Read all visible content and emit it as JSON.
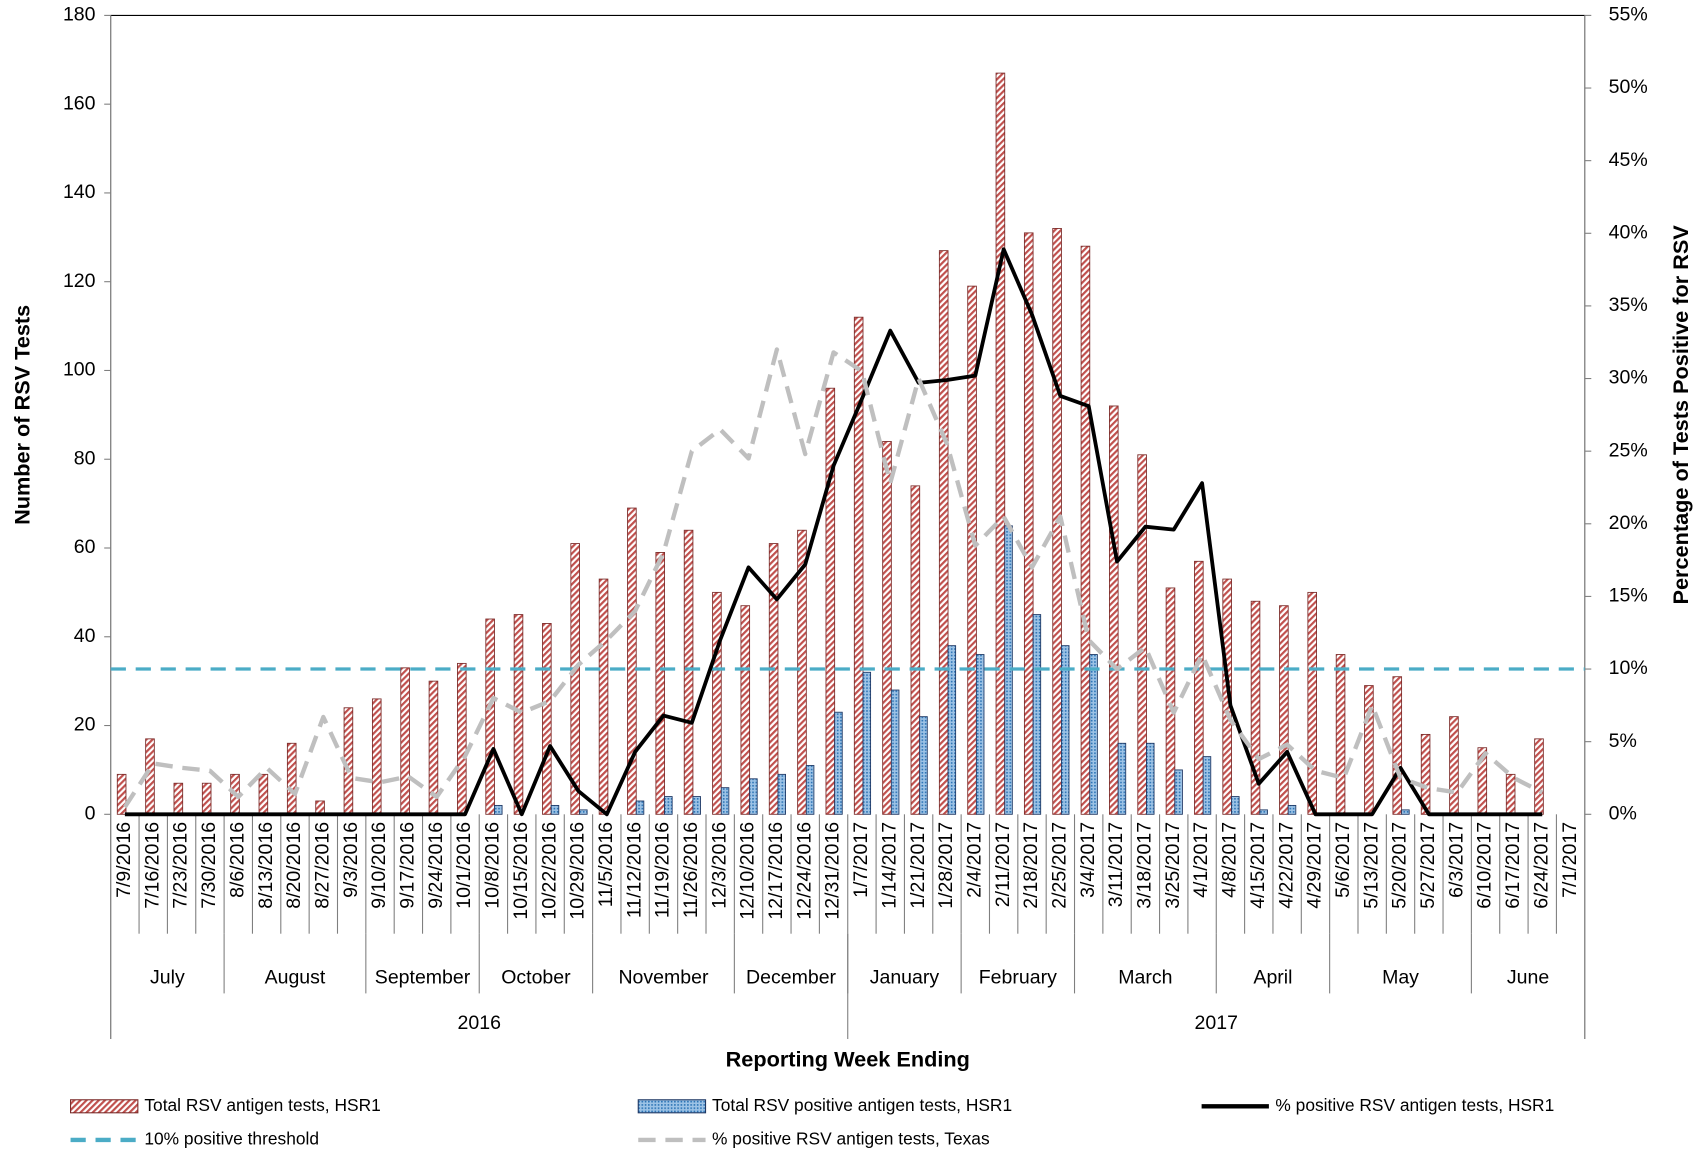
{
  "chart_data": {
    "type": "bar",
    "x_label": "Reporting Week Ending",
    "y_label": "Number of RSV Tests",
    "y2_label": "Percentage of Tests Positive for RSV",
    "categories": [
      "7/9/2016",
      "7/16/2016",
      "7/23/2016",
      "7/30/2016",
      "8/6/2016",
      "8/13/2016",
      "8/20/2016",
      "8/27/2016",
      "9/3/2016",
      "9/10/2016",
      "9/17/2016",
      "9/24/2016",
      "10/1/2016",
      "10/8/2016",
      "10/15/2016",
      "10/22/2016",
      "10/29/2016",
      "11/5/2016",
      "11/12/2016",
      "11/19/2016",
      "11/26/2016",
      "12/3/2016",
      "12/10/2016",
      "12/17/2016",
      "12/24/2016",
      "12/31/2016",
      "1/7/2017",
      "1/14/2017",
      "1/21/2017",
      "1/28/2017",
      "2/4/2017",
      "2/11/2017",
      "2/18/2017",
      "2/25/2017",
      "3/4/2017",
      "3/11/2017",
      "3/18/2017",
      "3/25/2017",
      "4/1/2017",
      "4/8/2017",
      "4/15/2017",
      "4/22/2017",
      "4/29/2017",
      "5/6/2017",
      "5/13/2017",
      "5/20/2017",
      "5/27/2017",
      "6/3/2017",
      "6/10/2017",
      "6/17/2017",
      "6/24/2017",
      "7/1/2017"
    ],
    "months": [
      "July",
      "August",
      "September",
      "October",
      "November",
      "December",
      "January",
      "February",
      "March",
      "April",
      "May",
      "June"
    ],
    "years": [
      "2016",
      "2017"
    ],
    "series": [
      {
        "name": "Total RSV antigen tests, HSR1",
        "color": "#c0504d",
        "type": "bar",
        "values": [
          9,
          17,
          7,
          7,
          9,
          9,
          16,
          3,
          24,
          26,
          33,
          30,
          34,
          44,
          45,
          43,
          61,
          53,
          69,
          59,
          64,
          50,
          47,
          61,
          64,
          96,
          112,
          84,
          74,
          127,
          119,
          167,
          131,
          132,
          128,
          92,
          81,
          51,
          57,
          53,
          48,
          47,
          50,
          36,
          29,
          31,
          18,
          22,
          15,
          9,
          17,
          null
        ]
      },
      {
        "name": "Total RSV positive antigen tests, HSR1",
        "color": "#4f81bd",
        "type": "bar",
        "values": [
          0,
          0,
          0,
          0,
          0,
          0,
          0,
          0,
          0,
          0,
          0,
          0,
          0,
          2,
          0,
          2,
          1,
          0,
          3,
          4,
          4,
          6,
          8,
          9,
          11,
          23,
          32,
          28,
          22,
          38,
          36,
          65,
          45,
          38,
          36,
          16,
          16,
          10,
          13,
          4,
          1,
          2,
          0,
          0,
          0,
          1,
          0,
          0,
          0,
          0,
          0,
          null
        ]
      },
      {
        "name": "% positive RSV antigen tests, HSR1",
        "color": "#000000",
        "type": "line",
        "axis": "y2",
        "values": [
          0,
          0,
          0,
          0,
          0,
          0,
          0,
          0,
          0,
          0,
          0,
          0,
          0,
          4.5,
          0,
          4.7,
          1.6,
          0,
          4.3,
          6.8,
          6.3,
          12,
          17,
          14.8,
          17.2,
          24,
          28.6,
          33.3,
          29.7,
          29.9,
          30.2,
          38.9,
          34.4,
          28.8,
          28.1,
          17.4,
          19.8,
          19.6,
          22.8,
          7.5,
          2.1,
          4.3,
          0,
          0,
          0,
          3.2,
          0,
          0,
          0,
          0,
          0,
          null
        ]
      },
      {
        "name": "% positive RSV antigen tests, Texas",
        "color": "#bfbfbf",
        "type": "line",
        "axis": "y2",
        "dashed": true,
        "values": [
          0.5,
          3.5,
          3.2,
          3.0,
          1.2,
          3.2,
          1.4,
          6.7,
          2.5,
          2.2,
          2.6,
          1.2,
          4.0,
          8.0,
          7.0,
          7.8,
          10.3,
          12.0,
          14.0,
          18.0,
          25.0,
          26.5,
          24.5,
          32.0,
          24.8,
          31.8,
          30.5,
          22.8,
          30.0,
          25.5,
          18.5,
          20.5,
          17.0,
          20.5,
          12.0,
          10.0,
          11.5,
          7.0,
          11.0,
          6.5,
          3.8,
          4.8,
          3.0,
          2.5,
          7.5,
          2.5,
          1.8,
          1.5,
          4.2,
          2.5,
          1.5,
          null
        ]
      }
    ],
    "threshold": {
      "name": "10% positive threshold",
      "value": 10,
      "color": "#4bacc6",
      "axis": "y2"
    },
    "ylim": [
      0,
      180
    ],
    "yticks": [
      0,
      20,
      40,
      60,
      80,
      100,
      120,
      140,
      160,
      180
    ],
    "y2lim": [
      0,
      55
    ],
    "y2ticks": [
      {
        "value": 0,
        "label": "0%"
      },
      {
        "value": 5,
        "label": "5%"
      },
      {
        "value": 10,
        "label": "10%"
      },
      {
        "value": 15,
        "label": "15%"
      },
      {
        "value": 20,
        "label": "20%"
      },
      {
        "value": 25,
        "label": "25%"
      },
      {
        "value": 30,
        "label": "30%"
      },
      {
        "value": 35,
        "label": "35%"
      },
      {
        "value": 40,
        "label": "40%"
      },
      {
        "value": 45,
        "label": "45%"
      },
      {
        "value": 50,
        "label": "50%"
      },
      {
        "value": 55,
        "label": "55%"
      }
    ],
    "legend": "bottom"
  }
}
